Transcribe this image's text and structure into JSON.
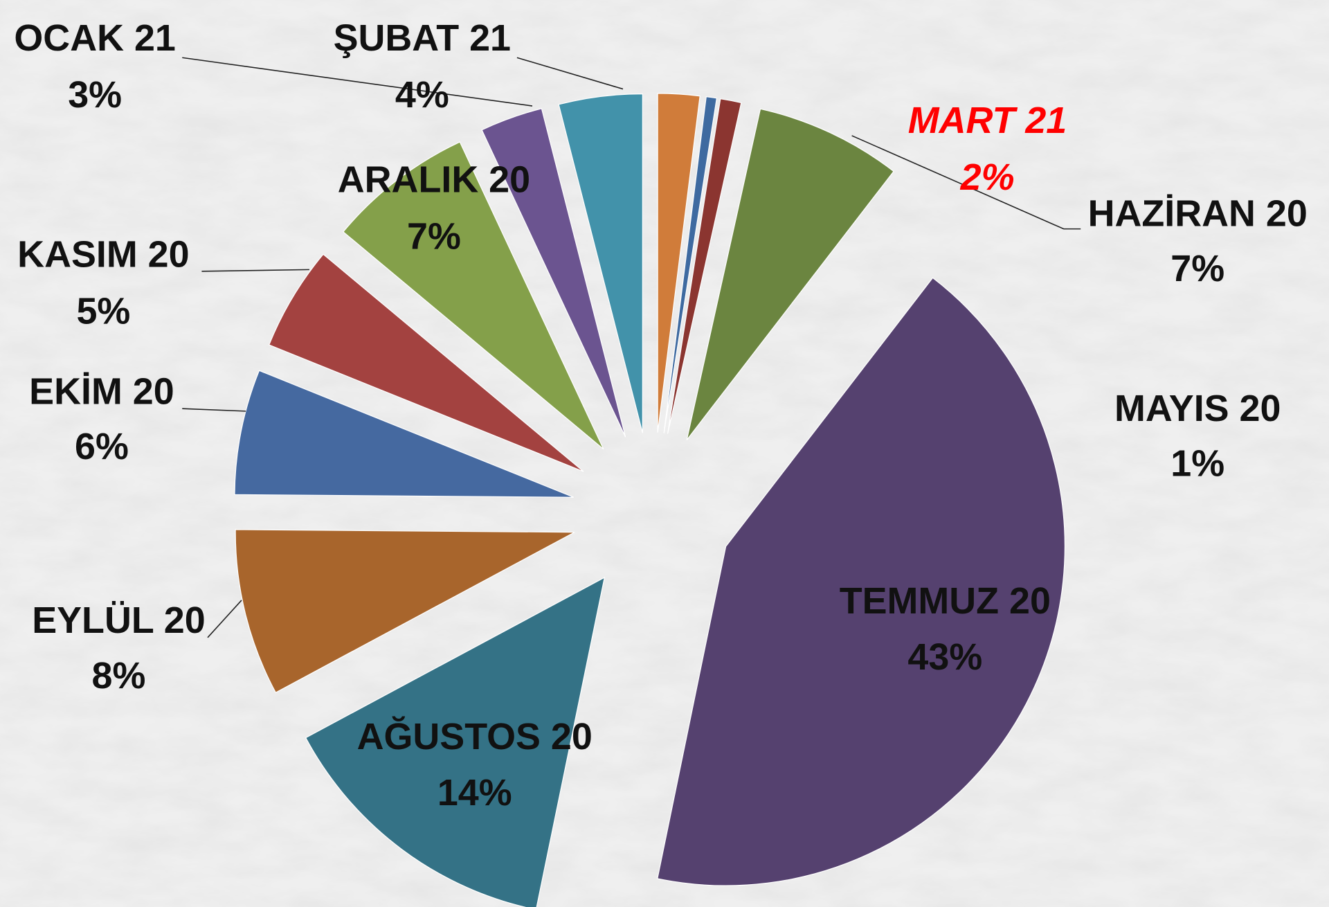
{
  "chart_data": {
    "type": "pie",
    "categories": [
      "MART 21",
      null,
      "MAYIS 20",
      "HAZİRAN 20",
      "TEMMUZ 20",
      "AĞUSTOS 20",
      "EYLÜL 20",
      "EKİM 20",
      "KASIM 20",
      "ARALIK 20",
      "OCAK 21",
      "ŞUBAT 21"
    ],
    "values": [
      2,
      0.5,
      1,
      7,
      43,
      14,
      8,
      6,
      5,
      7,
      3,
      4
    ],
    "value_labels": [
      "2%",
      null,
      "1%",
      "7%",
      "43%",
      "14%",
      "8%",
      "6%",
      "5%",
      "7%",
      "3%",
      "4%"
    ],
    "colors": [
      "#d07c3a",
      "#3e6aa0",
      "#8b3530",
      "#6b8540",
      "#55416f",
      "#347286",
      "#a8652c",
      "#4569a0",
      "#a34240",
      "#84a04a",
      "#6b5490",
      "#4292aa"
    ],
    "highlight": "MART 21"
  }
}
